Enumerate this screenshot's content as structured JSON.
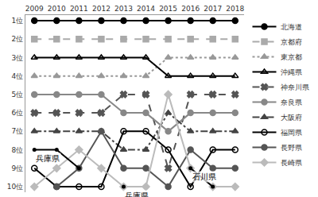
{
  "chart_data": {
    "type": "line",
    "categories": [
      "2009",
      "2010",
      "2011",
      "2012",
      "2013",
      "2014",
      "2015",
      "2016",
      "2017",
      "2018"
    ],
    "ylim": [
      10.3,
      0.7
    ],
    "yticks": [
      {
        "value": 1,
        "label": "1位"
      },
      {
        "value": 2,
        "label": "2位"
      },
      {
        "value": 3,
        "label": "3位"
      },
      {
        "value": 4,
        "label": "4位"
      },
      {
        "value": 5,
        "label": "5位"
      },
      {
        "value": 6,
        "label": "6位"
      },
      {
        "value": 7,
        "label": "7位"
      },
      {
        "value": 8,
        "label": "8位"
      },
      {
        "value": 9,
        "label": "9位"
      },
      {
        "value": 10,
        "label": "10位"
      }
    ],
    "grid": false,
    "legend": "right",
    "series": [
      {
        "name": "北海道",
        "color": "#000000",
        "marker": "circle",
        "line_style": "solid",
        "values": [
          1,
          1,
          1,
          1,
          1,
          1,
          1,
          1,
          1,
          1
        ]
      },
      {
        "name": "京都府",
        "color": "#aaaaaa",
        "marker": "square",
        "line_style": "dash",
        "values": [
          2,
          2,
          2,
          2,
          2,
          2,
          2,
          2,
          2,
          2
        ]
      },
      {
        "name": "東京都",
        "color": "#999999",
        "marker": "triangle-up",
        "line_style": "dot",
        "values": [
          4,
          4,
          4,
          4,
          4,
          4,
          3,
          3,
          3,
          3
        ]
      },
      {
        "name": "沖縄県",
        "color": "#000000",
        "marker": "triangle-up-open",
        "line_style": "solid",
        "values": [
          3,
          3,
          3,
          3,
          3,
          3,
          4,
          4,
          4,
          4
        ]
      },
      {
        "name": "神奈川県",
        "color": "#555555",
        "marker": "x",
        "line_style": "dash",
        "values": [
          6,
          6,
          6,
          6,
          5,
          5,
          9,
          5,
          5,
          5
        ]
      },
      {
        "name": "奈良県",
        "color": "#888888",
        "marker": "circle",
        "line_style": "solid",
        "values": [
          5,
          5,
          5,
          5,
          6,
          6,
          7,
          6,
          6,
          6
        ]
      },
      {
        "name": "大阪府",
        "color": "#444444",
        "marker": "triangle-up",
        "line_style": "dashdot",
        "values": [
          7,
          7,
          7,
          7,
          8,
          8,
          6,
          7,
          7,
          7
        ]
      },
      {
        "name": "福岡県",
        "color": "#000000",
        "marker": "circle-open",
        "line_style": "solid",
        "values": [
          9,
          10,
          10,
          10,
          7,
          7,
          8,
          10,
          8,
          8
        ]
      },
      {
        "name": "長野県",
        "color": "#555555",
        "marker": "circle",
        "line_style": "solid",
        "values": [
          null,
          10,
          9,
          7,
          9,
          9,
          10,
          8,
          9,
          9
        ]
      },
      {
        "name": "長崎県",
        "color": "#bbbbbb",
        "marker": "diamond",
        "line_style": "solid",
        "values": [
          10,
          9,
          8,
          9,
          10,
          10,
          5,
          9,
          10,
          10
        ]
      }
    ],
    "other_series": [
      {
        "name": "兵庫県",
        "color": "#000000",
        "values": [
          8,
          8,
          9,
          null,
          null,
          null,
          null,
          null,
          null,
          null
        ]
      },
      {
        "name": "兵庫県",
        "color": "#000000",
        "values": [
          null,
          null,
          null,
          null,
          10,
          null,
          null,
          null,
          null,
          null
        ]
      },
      {
        "name": "石川県",
        "color": "#000000",
        "values": [
          null,
          null,
          null,
          null,
          null,
          null,
          null,
          9,
          10,
          null
        ]
      }
    ]
  }
}
